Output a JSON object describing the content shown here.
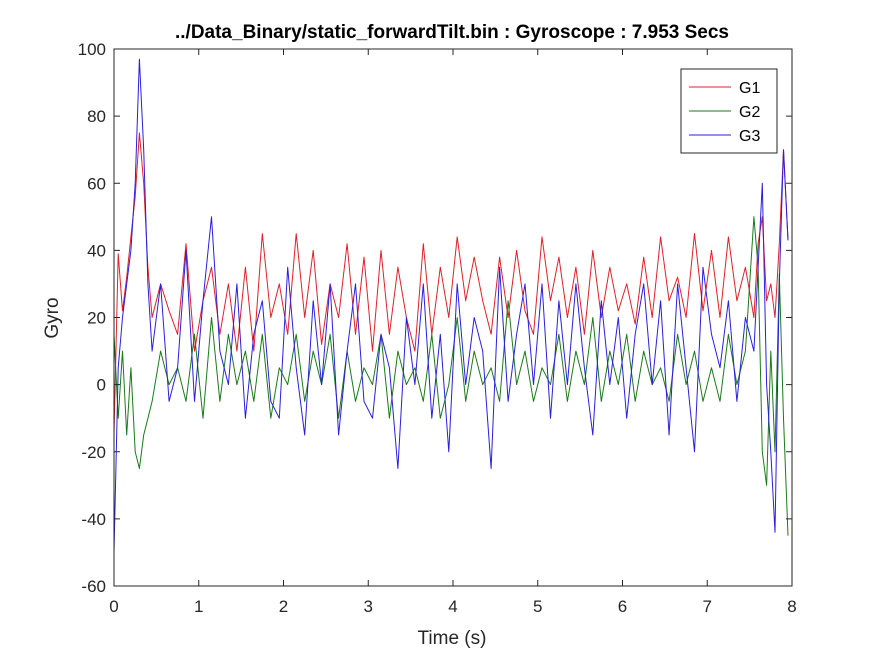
{
  "chart_data": {
    "type": "line",
    "title": "../Data_Binary/static_forwardTilt.bin : Gyroscope : 7.953 Secs",
    "xlabel": "Time (s)",
    "ylabel": "Gyro",
    "xlim": [
      0,
      8
    ],
    "ylim": [
      -60,
      100
    ],
    "xticks": [
      0,
      1,
      2,
      3,
      4,
      5,
      6,
      7,
      8
    ],
    "yticks": [
      -60,
      -40,
      -20,
      0,
      20,
      40,
      60,
      80,
      100
    ],
    "xticklabels": [
      "0",
      "1",
      "2",
      "3",
      "4",
      "5",
      "6",
      "7",
      "8"
    ],
    "yticklabels": [
      "-60",
      "-40",
      "-20",
      "0",
      "20",
      "40",
      "60",
      "80",
      "100"
    ],
    "grid": false,
    "legend_position": "top-right",
    "x": [
      0.0,
      0.05,
      0.1,
      0.15,
      0.2,
      0.25,
      0.3,
      0.35,
      0.4,
      0.45,
      0.55,
      0.65,
      0.75,
      0.85,
      0.95,
      1.05,
      1.15,
      1.25,
      1.35,
      1.45,
      1.55,
      1.65,
      1.75,
      1.85,
      1.95,
      2.05,
      2.15,
      2.25,
      2.35,
      2.45,
      2.55,
      2.65,
      2.75,
      2.85,
      2.95,
      3.05,
      3.15,
      3.25,
      3.35,
      3.45,
      3.55,
      3.65,
      3.75,
      3.85,
      3.95,
      4.05,
      4.15,
      4.25,
      4.35,
      4.45,
      4.55,
      4.65,
      4.75,
      4.85,
      4.95,
      5.05,
      5.15,
      5.25,
      5.35,
      5.45,
      5.55,
      5.65,
      5.75,
      5.85,
      5.95,
      6.05,
      6.15,
      6.25,
      6.35,
      6.45,
      6.55,
      6.65,
      6.75,
      6.85,
      6.95,
      7.05,
      7.15,
      7.25,
      7.35,
      7.45,
      7.55,
      7.6,
      7.65,
      7.7,
      7.75,
      7.8,
      7.85,
      7.9,
      7.953
    ],
    "series": [
      {
        "name": "G1",
        "color": "#e0202a",
        "values": [
          -15,
          39,
          22,
          32,
          44,
          56,
          75,
          60,
          35,
          20,
          30,
          22,
          15,
          42,
          10,
          25,
          35,
          15,
          30,
          10,
          35,
          10,
          45,
          20,
          30,
          15,
          45,
          20,
          40,
          12,
          30,
          20,
          42,
          15,
          38,
          10,
          40,
          15,
          35,
          20,
          10,
          42,
          15,
          35,
          20,
          44,
          25,
          38,
          25,
          15,
          38,
          20,
          40,
          22,
          15,
          44,
          25,
          38,
          20,
          35,
          15,
          40,
          20,
          35,
          22,
          30,
          18,
          38,
          20,
          44,
          25,
          32,
          20,
          45,
          22,
          40,
          20,
          44,
          25,
          35,
          20,
          42,
          50,
          25,
          30,
          20,
          42,
          70,
          43
        ]
      },
      {
        "name": "G2",
        "color": "#1a7a1a",
        "values": [
          15,
          -10,
          10,
          -15,
          5,
          -20,
          -25,
          -15,
          -10,
          -5,
          10,
          0,
          5,
          -5,
          15,
          -10,
          20,
          -5,
          15,
          0,
          10,
          -5,
          15,
          -10,
          5,
          0,
          15,
          -5,
          10,
          0,
          15,
          -10,
          10,
          -5,
          5,
          0,
          15,
          -10,
          10,
          0,
          5,
          -5,
          15,
          -10,
          0,
          20,
          -5,
          10,
          0,
          5,
          -5,
          25,
          0,
          10,
          -5,
          5,
          0,
          15,
          -5,
          10,
          0,
          20,
          -5,
          10,
          0,
          15,
          -5,
          10,
          0,
          5,
          -5,
          15,
          0,
          10,
          -5,
          5,
          -5,
          15,
          0,
          10,
          50,
          35,
          -20,
          -30,
          10,
          -20,
          33,
          -10,
          -45
        ]
      },
      {
        "name": "G3",
        "color": "#2a1ee0",
        "values": [
          -50,
          5,
          20,
          30,
          40,
          60,
          97,
          70,
          30,
          10,
          30,
          -5,
          5,
          40,
          -5,
          25,
          50,
          10,
          0,
          30,
          -10,
          15,
          25,
          -5,
          -10,
          35,
          5,
          -15,
          25,
          0,
          30,
          -15,
          10,
          30,
          -5,
          -10,
          15,
          5,
          -25,
          20,
          0,
          30,
          -10,
          15,
          -20,
          30,
          0,
          20,
          10,
          -25,
          35,
          -5,
          15,
          30,
          0,
          30,
          -10,
          25,
          0,
          30,
          5,
          -15,
          25,
          0,
          20,
          -10,
          15,
          30,
          0,
          25,
          -15,
          30,
          5,
          -20,
          35,
          15,
          5,
          25,
          -5,
          20,
          10,
          35,
          60,
          0,
          -20,
          -44,
          30,
          70,
          43
        ]
      }
    ]
  }
}
